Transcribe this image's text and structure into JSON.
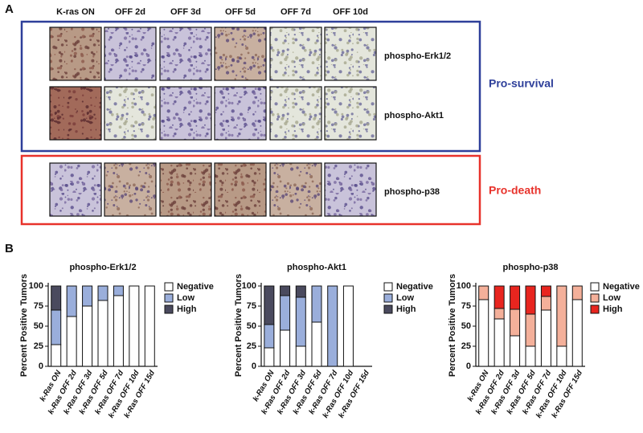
{
  "panel_a": {
    "label": "A",
    "columns": [
      "K-ras ON",
      "OFF 2d",
      "OFF 3d",
      "OFF 5d",
      "OFF 7d",
      "OFF 10d"
    ],
    "groups": [
      {
        "name": "Pro-survival",
        "rows": [
          "phospho-Erk1/2",
          "phospho-Akt1"
        ]
      },
      {
        "name": "Pro-death",
        "rows": [
          "phospho-p38"
        ]
      }
    ]
  },
  "panel_b": {
    "label": "B"
  },
  "chart_data": [
    {
      "type": "stacked_bar",
      "title": "phospho-Erk1/2",
      "y_label": "Percent Positive Tumors",
      "categories": [
        "k-Ras ON",
        "k-Ras OFF 2d",
        "k-Ras OFF 3d",
        "k-Ras OFF 5d",
        "k-Ras OFF 7d",
        "k-Ras OFF 10d",
        "k-Ras OFF 15d"
      ],
      "series": [
        {
          "name": "Negative",
          "color": "#ffffff",
          "values": [
            27,
            62,
            75,
            82,
            88,
            100,
            100
          ]
        },
        {
          "name": "Low",
          "color": "#9aaedb",
          "values": [
            43,
            38,
            25,
            18,
            12,
            0,
            0
          ]
        },
        {
          "name": "High",
          "color": "#4a4a5e",
          "values": [
            30,
            0,
            0,
            0,
            0,
            0,
            0
          ]
        }
      ],
      "ylim": [
        0,
        100
      ],
      "yticks": [
        0,
        25,
        50,
        75,
        100
      ],
      "legend": "right"
    },
    {
      "type": "stacked_bar",
      "title": "phospho-Akt1",
      "y_label": "Percent Positive Tumors",
      "categories": [
        "k-Ras ON",
        "k-Ras OFF 2d",
        "k-Ras OFF 3d",
        "k-Ras OFF 5d",
        "k-Ras OFF 7d",
        "k-Ras OFF 10d",
        "k-Ras OFF 15d"
      ],
      "series": [
        {
          "name": "Negative",
          "color": "#ffffff",
          "values": [
            23,
            45,
            25,
            55,
            0,
            100,
            null
          ]
        },
        {
          "name": "Low",
          "color": "#9aaedb",
          "values": [
            29,
            43,
            61,
            45,
            100,
            0,
            null
          ]
        },
        {
          "name": "High",
          "color": "#4a4a5e",
          "values": [
            48,
            12,
            14,
            0,
            0,
            0,
            null
          ]
        }
      ],
      "ylim": [
        0,
        100
      ],
      "yticks": [
        0,
        25,
        50,
        75,
        100
      ],
      "legend": "right"
    },
    {
      "type": "stacked_bar",
      "title": "phospho-p38",
      "y_label": "Percent Positive Tumors",
      "categories": [
        "k-Ras ON",
        "k-Ras OFF 2d",
        "k-Ras OFF 3d",
        "k-Ras OFF 5d",
        "k-Ras OFF 7d",
        "k-Ras OFF 10d",
        "k-Ras OFF 15d"
      ],
      "series": [
        {
          "name": "Negative",
          "color": "#ffffff",
          "values": [
            83,
            59,
            38,
            25,
            70,
            25,
            83
          ]
        },
        {
          "name": "Low",
          "color": "#f4b09a",
          "values": [
            17,
            13,
            33,
            40,
            17,
            75,
            17
          ]
        },
        {
          "name": "High",
          "color": "#e8251f",
          "values": [
            0,
            28,
            29,
            35,
            13,
            0,
            0
          ]
        }
      ],
      "ylim": [
        0,
        100
      ],
      "yticks": [
        0,
        25,
        50,
        75,
        100
      ],
      "legend": "right"
    }
  ]
}
